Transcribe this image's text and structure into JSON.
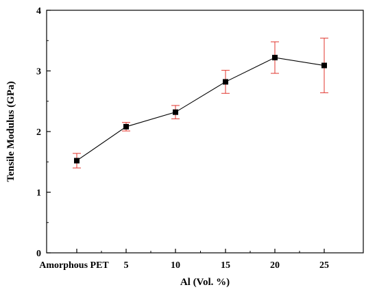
{
  "chart_data": {
    "type": "line",
    "xlabel": "Al (Vol. %)",
    "ylabel": "Tensile Modulus (GPa)",
    "categories": [
      "Amorphous PET",
      "5",
      "10",
      "15",
      "20",
      "25"
    ],
    "ylim": [
      0,
      4
    ],
    "yticks": [
      "0",
      "1",
      "2",
      "3",
      "4"
    ],
    "grid": false,
    "marker": "square",
    "colors": {
      "line": "#000000",
      "marker": "#000000",
      "error_bar": "#e0342c"
    },
    "series": [
      {
        "values": [
          1.52,
          2.08,
          2.32,
          2.82,
          3.22,
          3.09
        ],
        "error": [
          0.12,
          0.07,
          0.11,
          0.19,
          0.26,
          0.45
        ]
      }
    ]
  }
}
